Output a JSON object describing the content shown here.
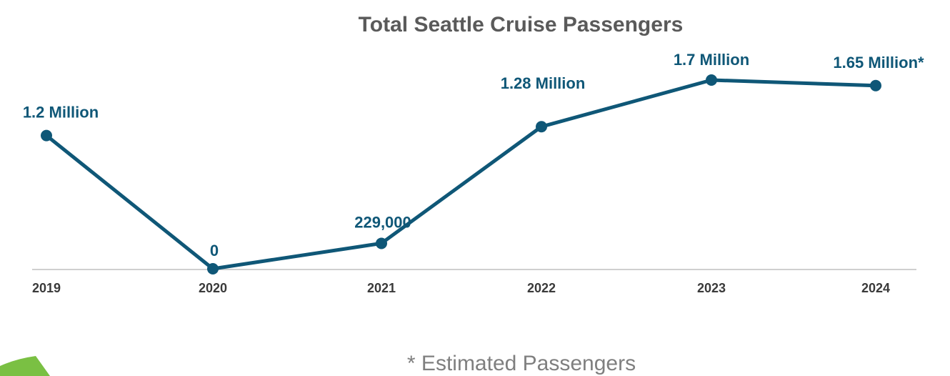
{
  "chart_data": {
    "type": "line",
    "title": "Total Seattle Cruise Passengers",
    "categories": [
      "2019",
      "2020",
      "2021",
      "2022",
      "2023",
      "2024"
    ],
    "series": [
      {
        "values": [
          1200000,
          0,
          229000,
          1280000,
          1700000,
          1650000
        ]
      }
    ],
    "data_labels": [
      "1.2 Million",
      "0",
      "229,000",
      "1.28 Million",
      "1.7 Million",
      "1.65 Million*"
    ],
    "ylim": [
      0,
      1800000
    ],
    "grid": false,
    "legend": "none",
    "line_color": "#0f5777",
    "axis_color": "#cfcfcf"
  },
  "footnote": "* Estimated Passengers",
  "accent_color": "#7ac043"
}
